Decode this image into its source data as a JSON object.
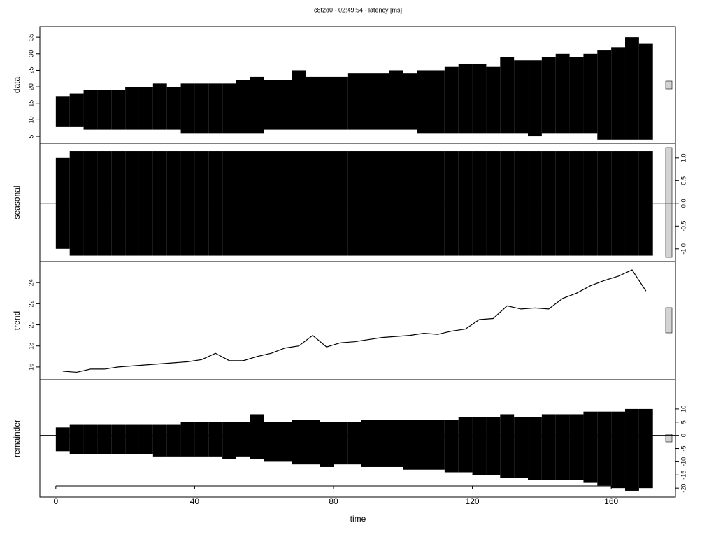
{
  "chart_data": [
    {
      "type": "range",
      "title": "c8t2d0 - 02:49:54 - latency [ms]",
      "ylabel": "data",
      "tick_side": "left",
      "x": [
        2,
        6,
        10,
        14,
        18,
        22,
        26,
        30,
        34,
        38,
        42,
        46,
        50,
        54,
        58,
        62,
        66,
        70,
        74,
        78,
        82,
        86,
        90,
        94,
        98,
        102,
        106,
        110,
        114,
        118,
        122,
        126,
        130,
        134,
        138,
        142,
        146,
        150,
        154,
        158,
        162,
        166,
        170
      ],
      "high": [
        17,
        18,
        19,
        19,
        19,
        20,
        20,
        21,
        20,
        21,
        21,
        21,
        21,
        22,
        23,
        22,
        22,
        25,
        23,
        23,
        23,
        24,
        24,
        24,
        25,
        24,
        25,
        25,
        26,
        27,
        27,
        26,
        29,
        28,
        28,
        29,
        30,
        29,
        30,
        31,
        32,
        35,
        33
      ],
      "low": [
        8,
        8,
        7,
        7,
        7,
        7,
        7,
        7,
        7,
        6,
        6,
        6,
        6,
        6,
        6,
        7,
        7,
        7,
        7,
        7,
        7,
        7,
        7,
        7,
        7,
        7,
        6,
        6,
        6,
        6,
        6,
        6,
        6,
        6,
        5,
        6,
        6,
        6,
        6,
        4,
        4,
        4,
        4
      ],
      "xlim": [
        -4.6,
        178.5
      ],
      "ylim": [
        2.9,
        38.2
      ],
      "yticks": [
        5,
        10,
        15,
        20,
        25,
        30,
        35
      ]
    },
    {
      "type": "range",
      "ylabel": "seasonal",
      "tick_side": "right",
      "x": [
        2,
        6,
        10,
        14,
        18,
        22,
        26,
        30,
        34,
        38,
        42,
        46,
        50,
        54,
        58,
        62,
        66,
        70,
        74,
        78,
        82,
        86,
        90,
        94,
        98,
        102,
        106,
        110,
        114,
        118,
        122,
        126,
        130,
        134,
        138,
        142,
        146,
        150,
        154,
        158,
        162,
        166,
        170
      ],
      "high": [
        1.0,
        1.15,
        1.15,
        1.15,
        1.15,
        1.15,
        1.15,
        1.15,
        1.15,
        1.15,
        1.15,
        1.15,
        1.15,
        1.15,
        1.15,
        1.15,
        1.15,
        1.15,
        1.15,
        1.15,
        1.15,
        1.15,
        1.15,
        1.15,
        1.15,
        1.15,
        1.15,
        1.15,
        1.15,
        1.15,
        1.15,
        1.15,
        1.15,
        1.15,
        1.15,
        1.15,
        1.15,
        1.15,
        1.15,
        1.15,
        1.15,
        1.15,
        1.15
      ],
      "low": [
        -1.0,
        -1.15,
        -1.15,
        -1.15,
        -1.15,
        -1.15,
        -1.15,
        -1.15,
        -1.15,
        -1.15,
        -1.15,
        -1.15,
        -1.15,
        -1.15,
        -1.15,
        -1.15,
        -1.15,
        -1.15,
        -1.15,
        -1.15,
        -1.15,
        -1.15,
        -1.15,
        -1.15,
        -1.15,
        -1.15,
        -1.15,
        -1.15,
        -1.15,
        -1.15,
        -1.15,
        -1.15,
        -1.15,
        -1.15,
        -1.15,
        -1.15,
        -1.15,
        -1.15,
        -1.15,
        -1.15,
        -1.15,
        -1.15,
        -1.15
      ],
      "xlim": [
        -4.6,
        178.5
      ],
      "ylim": [
        -1.28,
        1.32
      ],
      "yticks": [
        {
          "value": -1,
          "label": "-1.0"
        },
        -0.5,
        {
          "value": 0,
          "label": "0.0"
        },
        0.5,
        {
          "value": 1,
          "label": "1.0"
        }
      ]
    },
    {
      "type": "line",
      "ylabel": "trend",
      "tick_side": "left",
      "x": [
        2,
        6,
        10,
        14,
        18,
        22,
        26,
        30,
        34,
        38,
        42,
        46,
        50,
        54,
        58,
        62,
        66,
        70,
        74,
        78,
        82,
        86,
        90,
        94,
        98,
        102,
        106,
        110,
        114,
        118,
        122,
        126,
        130,
        134,
        138,
        142,
        146,
        150,
        154,
        158,
        162,
        166,
        170
      ],
      "values": [
        15.6,
        15.5,
        15.8,
        15.8,
        16.0,
        16.1,
        16.2,
        16.3,
        16.4,
        16.5,
        16.7,
        17.3,
        16.6,
        16.6,
        17.0,
        17.3,
        17.8,
        18.0,
        19.0,
        17.9,
        18.3,
        18.4,
        18.6,
        18.8,
        18.9,
        19.0,
        19.2,
        19.1,
        19.4,
        19.6,
        20.5,
        20.6,
        21.8,
        21.5,
        21.6,
        21.5,
        22.5,
        23.0,
        23.7,
        24.2,
        24.6,
        25.2,
        23.2
      ],
      "xlim": [
        -4.6,
        178.5
      ],
      "ylim": [
        14.8,
        26.0
      ],
      "yticks": [
        16,
        18,
        20,
        22,
        24
      ]
    },
    {
      "type": "range",
      "ylabel": "remainder",
      "tick_side": "right",
      "xlabel": "time",
      "x": [
        2,
        6,
        10,
        14,
        18,
        22,
        26,
        30,
        34,
        38,
        42,
        46,
        50,
        54,
        58,
        62,
        66,
        70,
        74,
        78,
        82,
        86,
        90,
        94,
        98,
        102,
        106,
        110,
        114,
        118,
        122,
        126,
        130,
        134,
        138,
        142,
        146,
        150,
        154,
        158,
        162,
        166,
        170
      ],
      "high": [
        3,
        4,
        4,
        4,
        4,
        4,
        4,
        4,
        4,
        5,
        5,
        5,
        5,
        5,
        8,
        5,
        5,
        6,
        6,
        5,
        5,
        5,
        6,
        6,
        6,
        6,
        6,
        6,
        6,
        7,
        7,
        7,
        8,
        7,
        7,
        8,
        8,
        8,
        9,
        9,
        9,
        10,
        10
      ],
      "low": [
        -6,
        -7,
        -7,
        -7,
        -7,
        -7,
        -7,
        -8,
        -8,
        -8,
        -8,
        -8,
        -9,
        -8,
        -9,
        -10,
        -10,
        -11,
        -11,
        -12,
        -11,
        -11,
        -12,
        -12,
        -12,
        -13,
        -13,
        -13,
        -14,
        -14,
        -15,
        -15,
        -16,
        -16,
        -17,
        -17,
        -17,
        -17,
        -18,
        -19,
        -20,
        -21,
        -20
      ],
      "xlim": [
        -4.6,
        178.5
      ],
      "ylim": [
        -23.4,
        21.1
      ],
      "yticks": [
        -20,
        -15,
        -10,
        -5,
        0,
        5,
        10
      ],
      "xticks": [
        0,
        40,
        80,
        120,
        160
      ]
    }
  ]
}
